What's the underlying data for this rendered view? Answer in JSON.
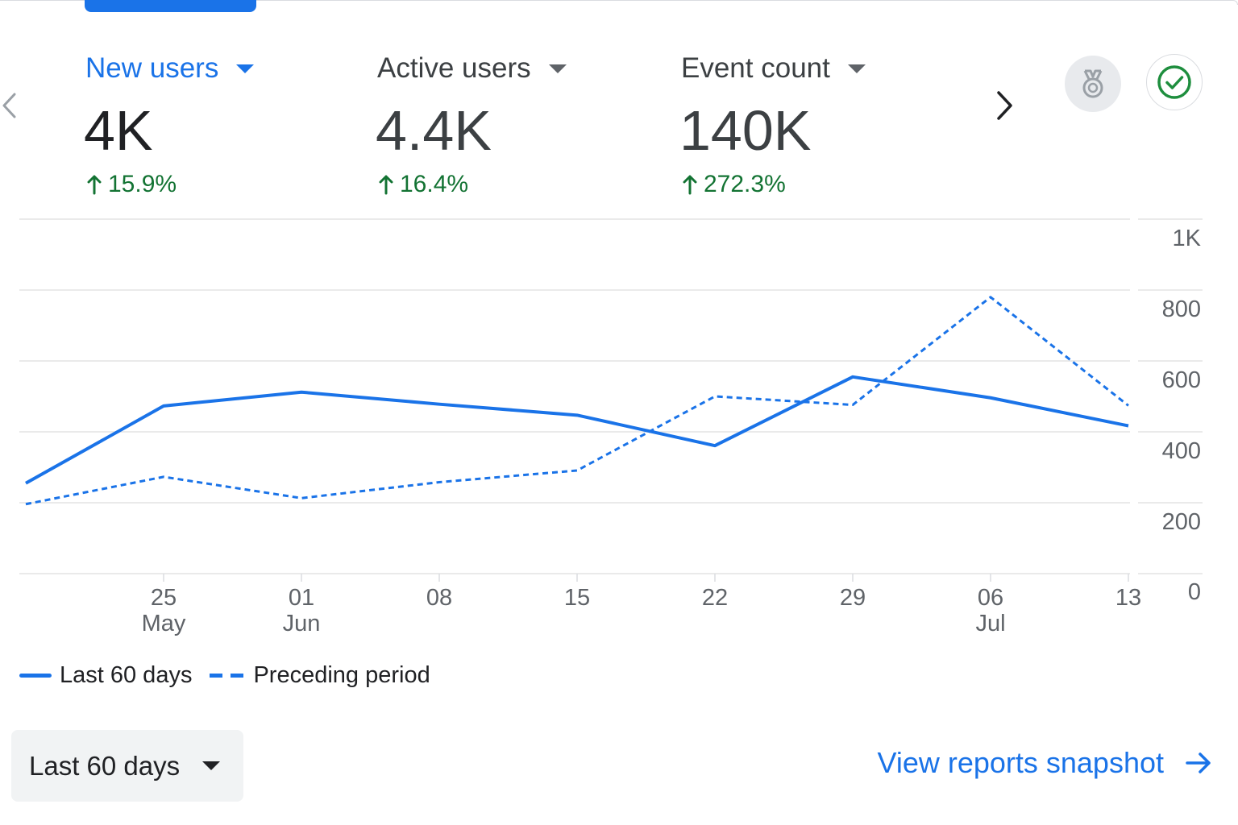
{
  "metrics": [
    {
      "label": "New users",
      "value": "4K",
      "change": "15.9%",
      "active": true
    },
    {
      "label": "Active users",
      "value": "4.4K",
      "change": "16.4%",
      "active": false
    },
    {
      "label": "Event count",
      "value": "140K",
      "change": "272.3%",
      "active": false
    }
  ],
  "colors": {
    "accent": "#1a73e8",
    "positive": "#137333",
    "grid": "#e0e0e0",
    "text": "#3c4043"
  },
  "icons": {
    "prev": "chevron-left-icon",
    "next": "chevron-right-icon",
    "badge": "medal-icon",
    "check": "check-circle-icon"
  },
  "chart_data": {
    "type": "line",
    "x": [
      "2024-05-18",
      "2024-05-25",
      "2024-06-01",
      "2024-06-08",
      "2024-06-15",
      "2024-06-22",
      "2024-06-29",
      "2024-07-06",
      "2024-07-13"
    ],
    "x_ticks": [
      {
        "date": "2024-05-25",
        "day": "25",
        "month": "May"
      },
      {
        "date": "2024-06-01",
        "day": "01",
        "month": "Jun"
      },
      {
        "date": "2024-06-08",
        "day": "08",
        "month": ""
      },
      {
        "date": "2024-06-15",
        "day": "15",
        "month": ""
      },
      {
        "date": "2024-06-22",
        "day": "22",
        "month": ""
      },
      {
        "date": "2024-06-29",
        "day": "29",
        "month": ""
      },
      {
        "date": "2024-07-06",
        "day": "06",
        "month": "Jul"
      },
      {
        "date": "2024-07-13",
        "day": "13",
        "month": ""
      }
    ],
    "y_ticks": [
      {
        "value": 0,
        "label": "0"
      },
      {
        "value": 200,
        "label": "200"
      },
      {
        "value": 400,
        "label": "400"
      },
      {
        "value": 600,
        "label": "600"
      },
      {
        "value": 800,
        "label": "800"
      },
      {
        "value": 1000,
        "label": "1K"
      }
    ],
    "ylim": [
      0,
      1000
    ],
    "series": [
      {
        "name": "Last 60 days",
        "style": "solid",
        "values": [
          255,
          473,
          512,
          478,
          447,
          361,
          555,
          496,
          417
        ]
      },
      {
        "name": "Preceding period",
        "style": "dashed",
        "values": [
          196,
          273,
          213,
          258,
          291,
          500,
          476,
          780,
          474
        ]
      }
    ],
    "grid": true,
    "legend_position": "bottom-left"
  },
  "date_range": {
    "label": "Last 60 days"
  },
  "view_link": {
    "label": "View reports snapshot"
  }
}
